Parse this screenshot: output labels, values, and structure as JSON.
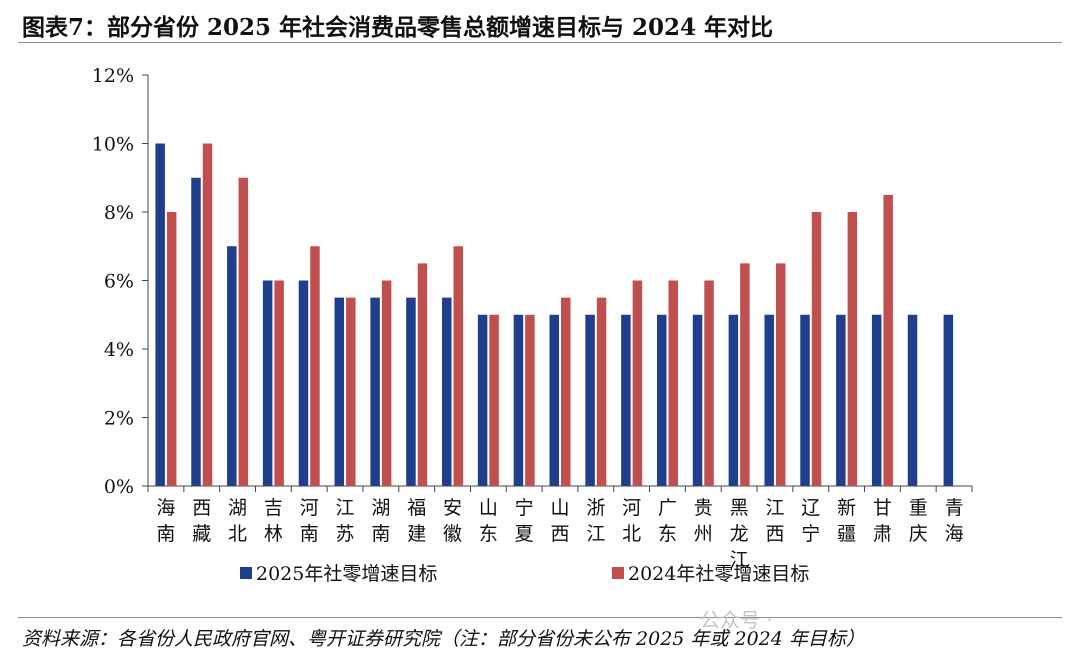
{
  "title": "图表7：部分省份 2025 年社会消费品零售总额增速目标与 2024 年对比",
  "source": "资料来源：各省份人民政府官网、粤开证券研究院（注：部分省份未公布 2025 年或 2024 年目标）",
  "watermark": "公众号 · ",
  "colors": {
    "series2025": "#1f3e8c",
    "series2024": "#c0504d"
  },
  "chart_data": {
    "type": "bar",
    "categories": [
      [
        "海",
        "南"
      ],
      [
        "西",
        "藏"
      ],
      [
        "湖",
        "北"
      ],
      [
        "吉",
        "林"
      ],
      [
        "河",
        "南"
      ],
      [
        "江",
        "苏"
      ],
      [
        "湖",
        "南"
      ],
      [
        "福",
        "建"
      ],
      [
        "安",
        "徽"
      ],
      [
        "山",
        "东"
      ],
      [
        "宁",
        "夏"
      ],
      [
        "山",
        "西"
      ],
      [
        "浙",
        "江"
      ],
      [
        "河",
        "北"
      ],
      [
        "广",
        "东"
      ],
      [
        "贵",
        "州"
      ],
      [
        "黑",
        "龙",
        "江"
      ],
      [
        "江",
        "西"
      ],
      [
        "辽",
        "宁"
      ],
      [
        "新",
        "疆"
      ],
      [
        "甘",
        "肃"
      ],
      [
        "重",
        "庆"
      ],
      [
        "青",
        "海"
      ]
    ],
    "series": [
      {
        "name": "2025年社零增速目标",
        "values": [
          10,
          9,
          7,
          6,
          6,
          5.5,
          5.5,
          5.5,
          5.5,
          5,
          5,
          5,
          5,
          5,
          5,
          5,
          5,
          5,
          5,
          5,
          5,
          5,
          5
        ]
      },
      {
        "name": "2024年社零增速目标",
        "values": [
          8,
          10,
          9,
          6,
          7,
          5.5,
          6,
          6.5,
          7,
          5,
          5,
          5.5,
          5.5,
          6,
          6,
          6,
          6.5,
          6.5,
          8,
          8,
          8.5,
          null,
          null
        ]
      }
    ],
    "ylim": [
      0,
      12
    ],
    "yticks": [
      "0%",
      "2%",
      "4%",
      "6%",
      "8%",
      "10%",
      "12%"
    ],
    "legend_position": "bottom",
    "grid": false
  }
}
